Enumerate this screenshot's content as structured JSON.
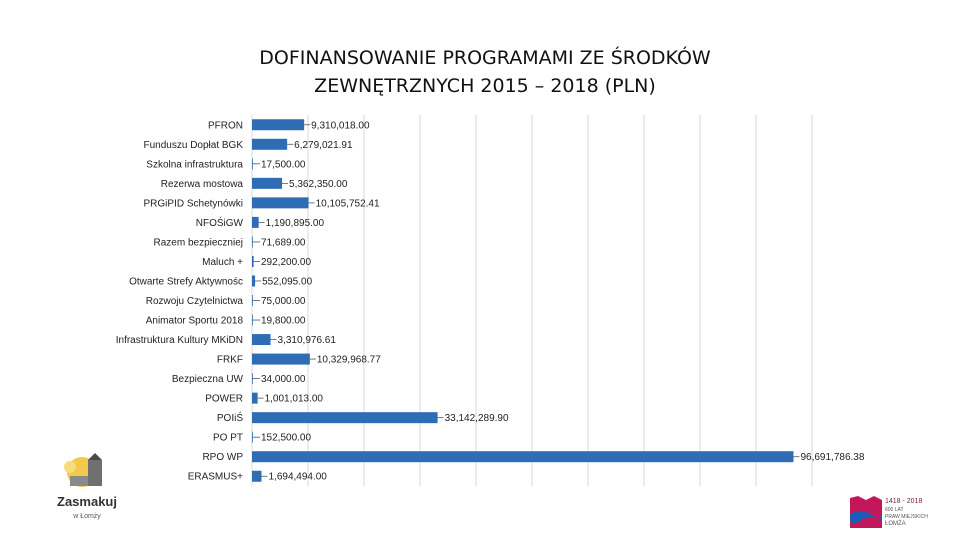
{
  "colors": {
    "bar": "#2e6db4",
    "grid": "#d9d9d9",
    "text": "#222222"
  },
  "chart_data": {
    "type": "bar",
    "orientation": "horizontal",
    "title_lines": [
      "DOFINANSOWANIE PROGRAMAMI ZE ŚRODKÓW",
      "ZEWNĘTRZNYCH 2015 – 2018 (PLN)"
    ],
    "categories": [
      "PFRON",
      "Funduszu Dopłat BGK",
      "Szkolna infrastruktura",
      "Rezerwa mostowa",
      "PRGiPID Schetynówki",
      "NFOŚiGW",
      "Razem bezpieczniej",
      "Maluch +",
      "Otwarte Strefy Aktywnośc",
      "Rozwoju Czytelnictwa",
      "Animator Sportu 2018",
      "Infrastruktura Kultury MKiDN",
      "FRKF",
      "Bezpieczna UW",
      "POWER",
      "POIiŚ",
      "PO PT",
      "RPO WP",
      "ERASMUS+"
    ],
    "values": [
      9310018.0,
      6279021.91,
      17500.0,
      5362350.0,
      10105752.41,
      1190895.0,
      71689.0,
      292200.0,
      552095.0,
      75000.0,
      19800.0,
      3310976.61,
      10329968.77,
      34000.0,
      1001013.0,
      33142289.9,
      152500.0,
      96691786.38,
      1694494.0
    ],
    "value_labels": [
      "9,310,018.00",
      "6,279,021.91",
      "17,500.00",
      "5,362,350.00",
      "10,105,752.41",
      "1,190,895.00",
      "71,689.00",
      "292,200.00",
      "552,095.00",
      "75,000.00",
      "19,800.00",
      "3,310,976.61",
      "10,329,968.77",
      "34,000.00",
      "1,001,013.00",
      "33,142,289.90",
      "152,500.00",
      "96,691,786.38",
      "1,694,494.00"
    ],
    "xlim": [
      0,
      100000000
    ],
    "grid": true,
    "legend": "none"
  },
  "logos": {
    "left": {
      "line1": "Zasmakuj",
      "line2": "w Łomży"
    },
    "right": {
      "line1": "1418 - 2018",
      "line2": "600 LAT",
      "line3": "PRAW MIEJSKICH",
      "line4": "ŁOMŻA"
    }
  }
}
